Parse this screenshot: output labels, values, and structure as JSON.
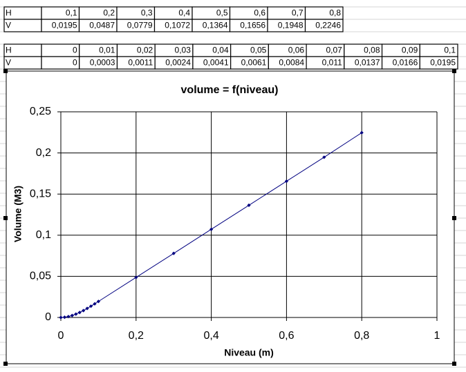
{
  "table1": {
    "rows": [
      [
        "H",
        "0,1",
        "0,2",
        "0,3",
        "0,4",
        "0,5",
        "0,6",
        "0,7",
        "0,8"
      ],
      [
        "V",
        "0,0195",
        "0,0487",
        "0,0779",
        "0,1072",
        "0,1364",
        "0,1656",
        "0,1948",
        "0,2246"
      ]
    ]
  },
  "table2": {
    "rows": [
      [
        "H",
        "0",
        "0,01",
        "0,02",
        "0,03",
        "0,04",
        "0,05",
        "0,06",
        "0,07",
        "0,08",
        "0,09",
        "0,1"
      ],
      [
        "V",
        "0",
        "0,0003",
        "0,0011",
        "0,0024",
        "0,0041",
        "0,0061",
        "0,0084",
        "0,011",
        "0,0137",
        "0,0166",
        "0,0195"
      ]
    ]
  },
  "chart_data": {
    "type": "scatter",
    "title": "volume = f(niveau)",
    "x_label": "Niveau (m)",
    "y_label": "Volume (M3)",
    "x": [
      0,
      0.01,
      0.02,
      0.03,
      0.04,
      0.05,
      0.06,
      0.07,
      0.08,
      0.09,
      0.1,
      0.2,
      0.3,
      0.4,
      0.5,
      0.6,
      0.7,
      0.8
    ],
    "series": [
      {
        "color": "#000080",
        "values": [
          0,
          0.0003,
          0.0011,
          0.0024,
          0.0041,
          0.0061,
          0.0084,
          0.011,
          0.0137,
          0.0166,
          0.0195,
          0.0487,
          0.0779,
          0.1072,
          0.1364,
          0.1656,
          0.1948,
          0.2246
        ]
      }
    ],
    "xlim": [
      0,
      1
    ],
    "ylim": [
      0,
      0.25
    ],
    "xticks": [
      0,
      {
        "value": 0.2,
        "label": "0,2"
      },
      {
        "value": 0.4,
        "label": "0,4"
      },
      {
        "value": 0.6,
        "label": "0,6"
      },
      {
        "value": 0.8,
        "label": "0,8"
      },
      1
    ],
    "yticks": [
      0,
      {
        "value": 0.05,
        "label": "0,05"
      },
      {
        "value": 0.1,
        "label": "0,1"
      },
      {
        "value": 0.15,
        "label": "0,15"
      },
      {
        "value": 0.2,
        "label": "0,2"
      },
      {
        "value": 0.25,
        "label": "0,25"
      }
    ],
    "grid": true,
    "line": true
  }
}
